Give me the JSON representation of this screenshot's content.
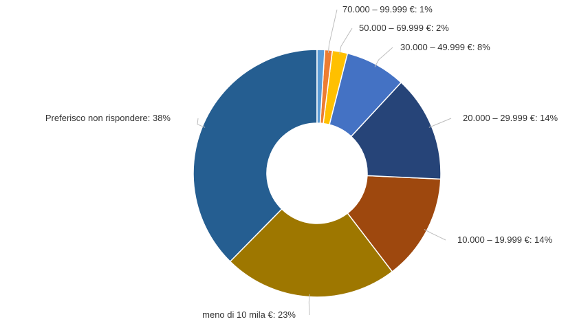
{
  "chart_data": {
    "type": "pie",
    "donut": true,
    "title": "",
    "slices": [
      {
        "label": "Preferisco non rispondere",
        "value": 38,
        "display": "Preferisco non rispondere: 38%",
        "color": "#255e91"
      },
      {
        "label": "meno di 10 mila €",
        "value": 23,
        "display": "meno di 10 mila €: 23%",
        "color": "#9e7700"
      },
      {
        "label": "10.000 – 19.999 €",
        "value": 14,
        "display": "10.000 – 19.999 €: 14%",
        "color": "#9e480e"
      },
      {
        "label": "20.000 – 29.999 €",
        "value": 14,
        "display": "20.000 – 29.999 €: 14%",
        "color": "#264478"
      },
      {
        "label": "30.000 – 49.999 €",
        "value": 8,
        "display": "30.000 – 49.999 €: 8%",
        "color": "#4472c4"
      },
      {
        "label": "50.000 – 69.999 €",
        "value": 2,
        "display": "50.000 – 69.999 €: 2%",
        "color": "#ffc000"
      },
      {
        "label": "70.000 – 99.999 €",
        "value": 1,
        "display": "70.000 – 99.999 €: 1%",
        "color": "#ed7d31"
      },
      {
        "label": "",
        "value": 1,
        "display": "",
        "color": "#5b9bd5"
      }
    ],
    "legend": "none"
  }
}
